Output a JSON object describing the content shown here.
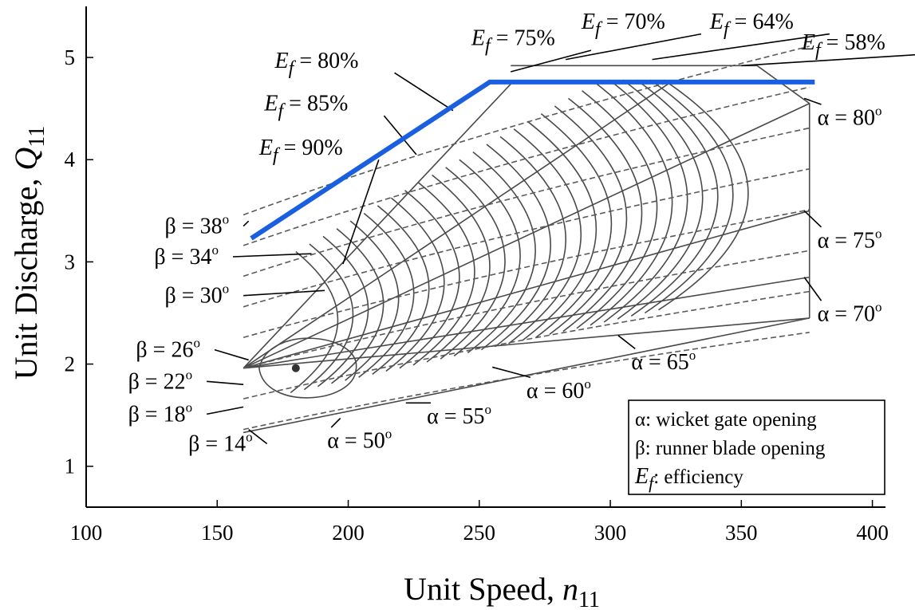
{
  "chart_data": {
    "type": "line",
    "title": "",
    "xlabel": {
      "text": "Unit Speed, ",
      "symbol": "n",
      "subscript": "11"
    },
    "ylabel": {
      "text": "Unit Discharge, ",
      "symbol": "Q",
      "subscript": "11"
    },
    "xlim": [
      100,
      405
    ],
    "ylim": [
      0.6,
      5.5
    ],
    "xticks": [
      100,
      150,
      200,
      250,
      300,
      350,
      400
    ],
    "yticks": [
      1,
      2,
      3,
      4,
      5
    ],
    "grid": false,
    "series": [
      {
        "color": "#1a5fe0",
        "x": [
          163,
          254,
          378
        ],
        "y": [
          3.23,
          4.76,
          4.76
        ]
      }
    ],
    "best_efficiency_point": {
      "x": 180,
      "y": 1.96
    },
    "efficiency_labels": [
      {
        "text": "80%",
        "label_at": [
          172,
          4.9
        ],
        "points_to": [
          240,
          4.48
        ]
      },
      {
        "text": "75%",
        "label_at": [
          247,
          5.12
        ],
        "points_to": [
          262,
          4.86
        ]
      },
      {
        "text": "70%",
        "label_at": [
          289,
          5.28
        ],
        "points_to": [
          283,
          4.98
        ]
      },
      {
        "text": "64%",
        "label_at": [
          338,
          5.28
        ],
        "points_to": [
          316,
          4.98
        ]
      },
      {
        "text": "58%",
        "label_at": [
          373,
          5.08
        ],
        "points_to": [
          350,
          4.92
        ]
      },
      {
        "text": "85%",
        "label_at": [
          168,
          4.48
        ],
        "points_to": [
          226,
          4.05
        ]
      },
      {
        "text": "90%",
        "label_at": [
          166,
          4.05
        ],
        "points_to": [
          198,
          2.98
        ]
      }
    ],
    "alpha_labels": [
      {
        "text": "80",
        "label_at": [
          379,
          4.34
        ],
        "points_to": [
          374,
          4.6
        ]
      },
      {
        "text": "75",
        "label_at": [
          379,
          3.14
        ],
        "points_to": [
          374,
          3.5
        ]
      },
      {
        "text": "70",
        "label_at": [
          379,
          2.42
        ],
        "points_to": [
          374,
          2.85
        ]
      },
      {
        "text": "65",
        "label_at": [
          308,
          1.95
        ],
        "points_to": [
          303,
          2.28
        ]
      },
      {
        "text": "60",
        "label_at": [
          268,
          1.67
        ],
        "points_to": [
          255,
          1.97
        ]
      },
      {
        "text": "55",
        "label_at": [
          230,
          1.42
        ],
        "points_to": [
          222,
          1.62
        ]
      },
      {
        "text": "50",
        "label_at": [
          192,
          1.18
        ],
        "points_to": [
          197,
          1.47
        ]
      }
    ],
    "beta_labels": [
      {
        "text": "38",
        "label_at": [
          130,
          3.28
        ],
        "points_to": [
          162,
          3.4
        ]
      },
      {
        "text": "34",
        "label_at": [
          126,
          2.98
        ],
        "points_to": [
          186,
          3.08
        ]
      },
      {
        "text": "30",
        "label_at": [
          130,
          2.6
        ],
        "points_to": [
          191,
          2.72
        ]
      },
      {
        "text": "26",
        "label_at": [
          119,
          2.07
        ],
        "points_to": [
          162,
          2.04
        ]
      },
      {
        "text": "22",
        "label_at": [
          116,
          1.76
        ],
        "points_to": [
          160,
          1.8
        ]
      },
      {
        "text": "18",
        "label_at": [
          116,
          1.44
        ],
        "points_to": [
          160,
          1.58
        ]
      },
      {
        "text": "14",
        "label_at": [
          139,
          1.15
        ],
        "points_to": [
          162,
          1.36
        ]
      }
    ],
    "legend": {
      "placement": "bottom-right",
      "entries": [
        {
          "symbol": "α",
          "text": ": wicket gate opening"
        },
        {
          "symbol": "β",
          "text": ": runner blade opening"
        },
        {
          "symbol": "E",
          "subscript": "f",
          "text": ": efficiency"
        }
      ]
    },
    "efficiency_prefix": {
      "symbol": "E",
      "subscript": "f",
      "sign": " = "
    },
    "alpha_prefix": "α = ",
    "beta_prefix": "β = ",
    "degree_mark": "o"
  }
}
